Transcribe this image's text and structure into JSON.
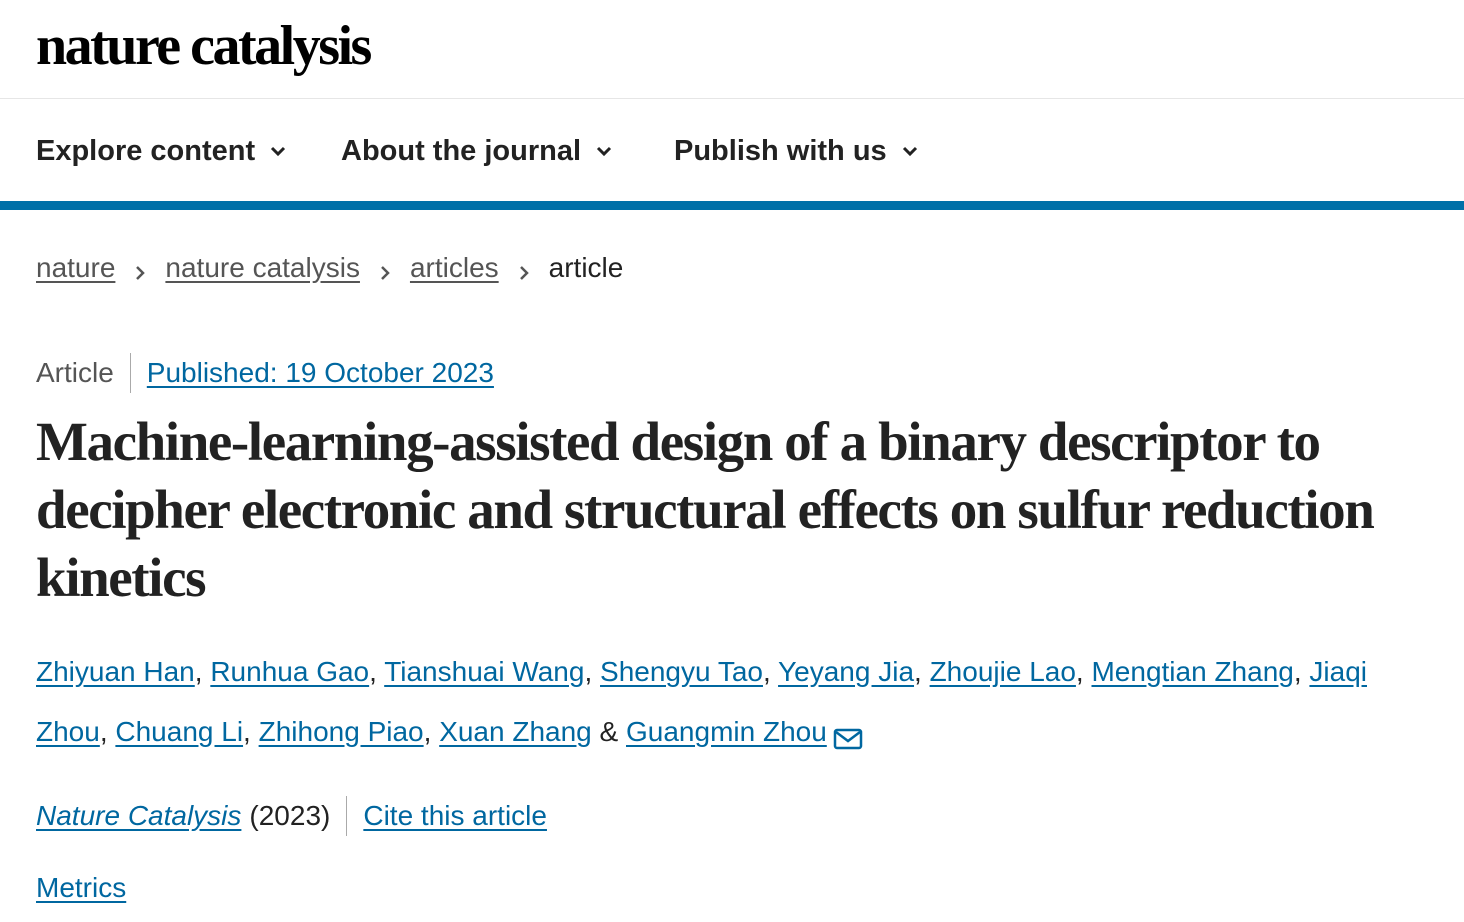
{
  "header": {
    "logo_text": "nature catalysis"
  },
  "nav": {
    "items": [
      {
        "label": "Explore content",
        "icon": "chevron-down-icon"
      },
      {
        "label": "About the journal",
        "icon": "chevron-down-icon"
      },
      {
        "label": "Publish with us",
        "icon": "chevron-down-icon"
      }
    ]
  },
  "breadcrumb": {
    "items": [
      {
        "label": "nature"
      },
      {
        "label": "nature catalysis"
      },
      {
        "label": "articles"
      }
    ],
    "current": "article"
  },
  "article": {
    "type": "Article",
    "published": "Published: 19 October 2023",
    "title": "Machine-learning-assisted design of a binary descriptor to decipher electronic and structural effects on sulfur reduction kinetics",
    "authors": [
      "Zhiyuan Han",
      "Runhua Gao",
      "Tianshuai Wang",
      "Shengyu Tao",
      "Yeyang Jia",
      "Zhoujie Lao",
      "Mengtian Zhang",
      "Jiaqi Zhou",
      "Chuang Li",
      "Zhihong Piao",
      "Xuan Zhang",
      "Guangmin Zhou"
    ],
    "author_separator": ", ",
    "author_last_separator": " & ",
    "corresponding_icon": "mail-icon",
    "journal": "Nature Catalysis",
    "year": "(2023)",
    "cite_label": "Cite this article",
    "metrics_label": "Metrics"
  },
  "colors": {
    "accent": "#0070a8",
    "link": "#0067a0",
    "text": "#222222"
  }
}
